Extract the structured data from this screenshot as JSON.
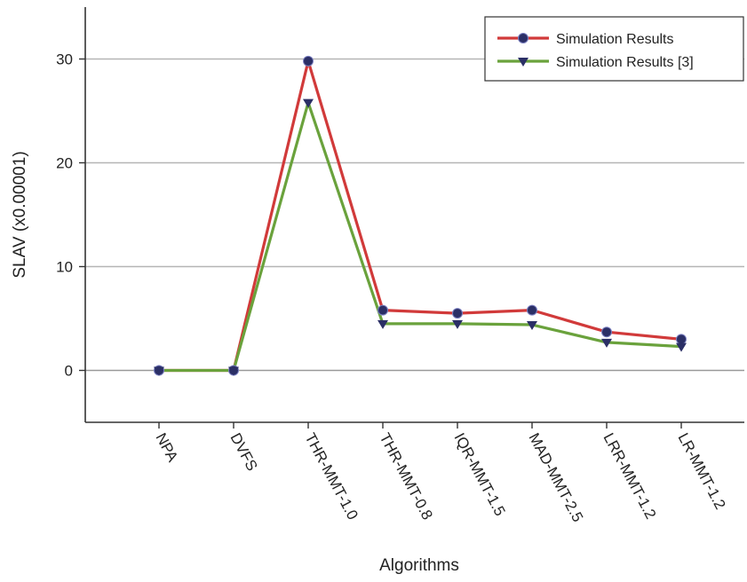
{
  "chart_data": {
    "type": "line",
    "title": "",
    "xlabel": "Algorithms",
    "ylabel": "SLAV (x0.00001)",
    "categories": [
      "NPA",
      "DVFS",
      "THR-MMT-1.0",
      "THR-MMT-0.8",
      "IQR-MMT-1.5",
      "MAD-MMT-2.5",
      "LRR-MMT-1.2",
      "LR-MMT-1.2"
    ],
    "ylim": [
      -5,
      35
    ],
    "yticks": [
      0,
      10,
      20,
      30
    ],
    "grid": "horizontal",
    "legend_position": "top-right",
    "series": [
      {
        "name": "Simulation Results",
        "values": [
          0,
          0,
          29.8,
          5.8,
          5.5,
          5.8,
          3.7,
          3.0
        ],
        "line_color": "#d13a3a",
        "marker": "circle",
        "marker_color": "#2b2f66"
      },
      {
        "name": "Simulation Results [3]",
        "values": [
          0,
          0,
          25.8,
          4.5,
          4.5,
          4.4,
          2.7,
          2.3
        ],
        "line_color": "#6aa23c",
        "marker": "triangle-down",
        "marker_color": "#2b2f66"
      }
    ]
  },
  "colors": {
    "axis": "#333333",
    "grid": "#b5b5b5",
    "zero_line": "#999999",
    "background": "#ffffff"
  }
}
